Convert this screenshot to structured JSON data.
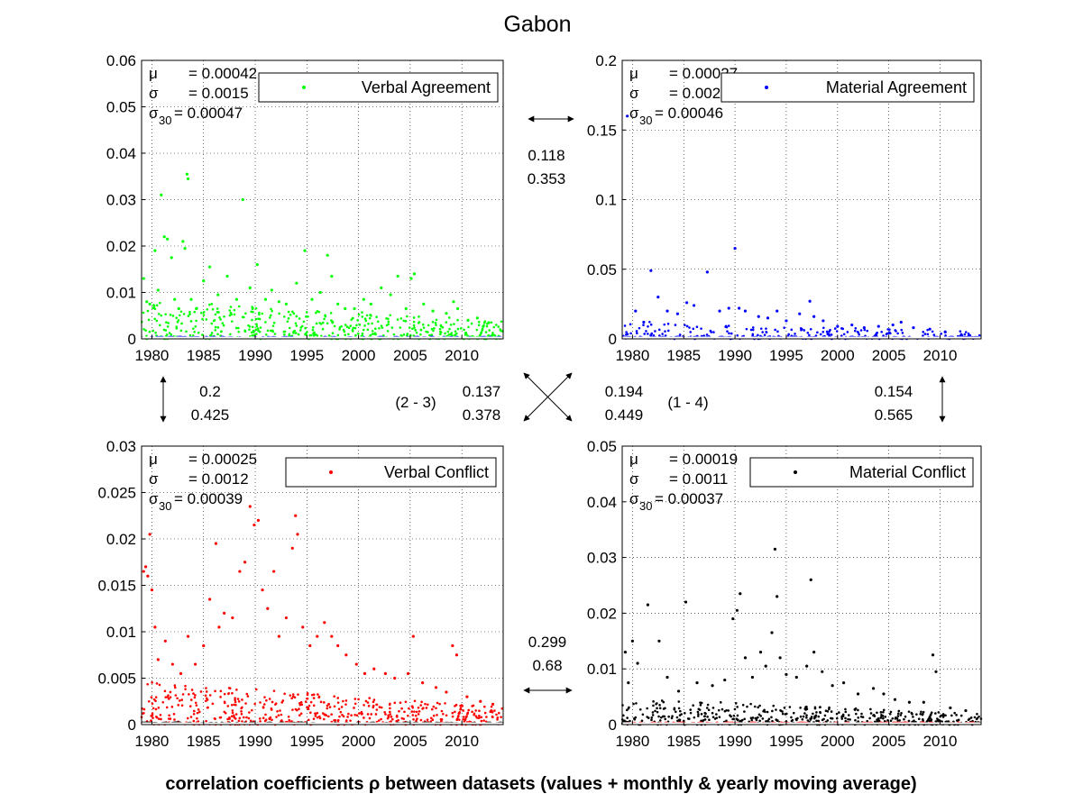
{
  "title": "Gabon",
  "footer": "correlation coefficients ρ between datasets (values + monthly & yearly moving average)",
  "x_ticks": [
    "1980",
    "1985",
    "1990",
    "1995",
    "2000",
    "2005",
    "2010"
  ],
  "chart_data": [
    {
      "type": "scatter",
      "legend": "Verbal Agreement",
      "color": "#00ff00",
      "stats": {
        "mu": "= 0.00042",
        "sigma": "= 0.0015",
        "sigma30": "= 0.00047"
      },
      "xlim": [
        1979,
        2014
      ],
      "ylim": [
        0,
        0.06
      ],
      "yticks": [
        0,
        0.01,
        0.02,
        0.03,
        0.04,
        0.05,
        0.06
      ],
      "ytick_labels": [
        "0",
        "0.01",
        "0.02",
        "0.03",
        "0.04",
        "0.05",
        "0.06"
      ],
      "points": [
        [
          1979.2,
          0.013
        ],
        [
          1979.5,
          0.008
        ],
        [
          1979.8,
          0.0075
        ],
        [
          1980.3,
          0.019
        ],
        [
          1980.6,
          0.0105
        ],
        [
          1980.9,
          0.031
        ],
        [
          1981.2,
          0.022
        ],
        [
          1981.5,
          0.0215
        ],
        [
          1981.9,
          0.0175
        ],
        [
          1982.2,
          0.0085
        ],
        [
          1982.6,
          0.0065
        ],
        [
          1983.0,
          0.021
        ],
        [
          1983.2,
          0.0195
        ],
        [
          1983.4,
          0.0355
        ],
        [
          1983.5,
          0.0345
        ],
        [
          1983.8,
          0.0085
        ],
        [
          1984.3,
          0.0065
        ],
        [
          1985.0,
          0.0125
        ],
        [
          1985.6,
          0.0155
        ],
        [
          1986.4,
          0.0095
        ],
        [
          1987.3,
          0.0135
        ],
        [
          1988.2,
          0.0085
        ],
        [
          1988.8,
          0.03
        ],
        [
          1989.5,
          0.011
        ],
        [
          1990.2,
          0.016
        ],
        [
          1991.0,
          0.0085
        ],
        [
          1991.6,
          0.0105
        ],
        [
          1992.3,
          0.008
        ],
        [
          1993.0,
          0.0075
        ],
        [
          1994.0,
          0.012
        ],
        [
          1994.8,
          0.019
        ],
        [
          1995.5,
          0.0085
        ],
        [
          1996.3,
          0.01
        ],
        [
          1997.0,
          0.018
        ],
        [
          1997.4,
          0.0135
        ],
        [
          1998.0,
          0.0075
        ],
        [
          1998.7,
          0.0065
        ],
        [
          1999.6,
          0.0065
        ],
        [
          2000.5,
          0.0085
        ],
        [
          2001.2,
          0.0075
        ],
        [
          2002.2,
          0.011
        ],
        [
          2003.1,
          0.0095
        ],
        [
          2003.8,
          0.0135
        ],
        [
          2004.6,
          0.0065
        ],
        [
          2005.1,
          0.013
        ],
        [
          2005.4,
          0.014
        ],
        [
          2006.3,
          0.0075
        ],
        [
          2007.2,
          0.006
        ],
        [
          2008.5,
          0.0055
        ],
        [
          2009.2,
          0.008
        ],
        [
          2009.6,
          0.0065
        ],
        [
          2010.6,
          0.004
        ],
        [
          2011.5,
          0.0045
        ],
        [
          2012.6,
          0.0035
        ]
      ],
      "dense": {
        "from": 1979,
        "to": 2014,
        "count": 520,
        "high": 0.007,
        "low": 0.0015,
        "seed": 11
      }
    },
    {
      "type": "scatter",
      "legend": "Material Agreement",
      "color": "#0000ff",
      "stats": {
        "mu": "= 0.00027",
        "sigma": "= 0.002",
        "sigma30": "= 0.00046"
      },
      "xlim": [
        1979,
        2014
      ],
      "ylim": [
        0,
        0.2
      ],
      "yticks": [
        0,
        0.05,
        0.1,
        0.15,
        0.2
      ],
      "ytick_labels": [
        "0",
        "0.05",
        "0.1",
        "0.15",
        "0.2"
      ],
      "points": [
        [
          1979.5,
          0.16
        ],
        [
          1980.3,
          0.02
        ],
        [
          1981.1,
          0.012
        ],
        [
          1981.8,
          0.049
        ],
        [
          1982.5,
          0.03
        ],
        [
          1983.4,
          0.02
        ],
        [
          1984.4,
          0.018
        ],
        [
          1985.3,
          0.026
        ],
        [
          1986.0,
          0.024
        ],
        [
          1987.3,
          0.048
        ],
        [
          1988.5,
          0.02
        ],
        [
          1989.4,
          0.022
        ],
        [
          1990.0,
          0.065
        ],
        [
          1990.4,
          0.022
        ],
        [
          1991.0,
          0.02
        ],
        [
          1992.3,
          0.016
        ],
        [
          1993.2,
          0.015
        ],
        [
          1994.1,
          0.02
        ],
        [
          1995.0,
          0.013
        ],
        [
          1996.3,
          0.018
        ],
        [
          1997.3,
          0.027
        ],
        [
          1997.7,
          0.016
        ],
        [
          1998.6,
          0.013
        ],
        [
          2000.0,
          0.009
        ],
        [
          2001.4,
          0.01
        ],
        [
          2002.6,
          0.008
        ],
        [
          2004.0,
          0.009
        ],
        [
          2005.4,
          0.01
        ],
        [
          2006.2,
          0.012
        ],
        [
          2007.4,
          0.008
        ],
        [
          2009.0,
          0.007
        ],
        [
          2010.5,
          0.005
        ]
      ],
      "dense": {
        "from": 1979,
        "to": 2014,
        "count": 260,
        "high": 0.012,
        "low": 0.001,
        "seed": 23
      }
    },
    {
      "type": "scatter",
      "legend": "Verbal Conflict",
      "color": "#ff0000",
      "stats": {
        "mu": "= 0.00025",
        "sigma": "= 0.0012",
        "sigma30": "= 0.00039"
      },
      "xlim": [
        1979,
        2014
      ],
      "ylim": [
        0,
        0.03
      ],
      "yticks": [
        0,
        0.005,
        0.01,
        0.015,
        0.02,
        0.025,
        0.03
      ],
      "ytick_labels": [
        "0",
        "0.005",
        "0.01",
        "0.015",
        "0.02",
        "0.025",
        "0.03"
      ],
      "points": [
        [
          1979.2,
          0.0165
        ],
        [
          1979.4,
          0.017
        ],
        [
          1979.6,
          0.016
        ],
        [
          1979.8,
          0.0205
        ],
        [
          1980.0,
          0.0145
        ],
        [
          1980.3,
          0.0105
        ],
        [
          1980.6,
          0.007
        ],
        [
          1981.3,
          0.009
        ],
        [
          1982.0,
          0.0065
        ],
        [
          1982.8,
          0.0055
        ],
        [
          1983.5,
          0.0095
        ],
        [
          1984.2,
          0.0065
        ],
        [
          1985.0,
          0.0085
        ],
        [
          1985.6,
          0.0135
        ],
        [
          1986.2,
          0.0195
        ],
        [
          1986.5,
          0.0105
        ],
        [
          1987.0,
          0.012
        ],
        [
          1987.8,
          0.0115
        ],
        [
          1988.5,
          0.0165
        ],
        [
          1989.0,
          0.0175
        ],
        [
          1989.5,
          0.0235
        ],
        [
          1989.9,
          0.0215
        ],
        [
          1990.3,
          0.022
        ],
        [
          1990.7,
          0.0145
        ],
        [
          1991.2,
          0.0125
        ],
        [
          1991.8,
          0.0165
        ],
        [
          1992.3,
          0.0095
        ],
        [
          1993.0,
          0.0115
        ],
        [
          1993.6,
          0.019
        ],
        [
          1993.9,
          0.0225
        ],
        [
          1994.1,
          0.0205
        ],
        [
          1994.6,
          0.0105
        ],
        [
          1995.3,
          0.0085
        ],
        [
          1996.0,
          0.0095
        ],
        [
          1996.7,
          0.011
        ],
        [
          1997.4,
          0.0095
        ],
        [
          1998.0,
          0.0085
        ],
        [
          1998.8,
          0.0075
        ],
        [
          1999.8,
          0.0065
        ],
        [
          2000.6,
          0.0055
        ],
        [
          2001.5,
          0.006
        ],
        [
          2002.6,
          0.0055
        ],
        [
          2003.5,
          0.005
        ],
        [
          2004.8,
          0.0055
        ],
        [
          2005.3,
          0.0095
        ],
        [
          2006.2,
          0.0045
        ],
        [
          2007.5,
          0.004
        ],
        [
          2008.5,
          0.0035
        ],
        [
          2009.1,
          0.0085
        ],
        [
          2009.5,
          0.0075
        ],
        [
          2010.5,
          0.003
        ],
        [
          2011.8,
          0.0025
        ],
        [
          2013.0,
          0.0022
        ]
      ],
      "dense": {
        "from": 1979,
        "to": 2014,
        "count": 560,
        "high": 0.0045,
        "low": 0.0003,
        "seed": 37
      }
    },
    {
      "type": "scatter",
      "legend": "Material Conflict",
      "color": "#000000",
      "stats": {
        "mu": "= 0.00019",
        "sigma": "= 0.0011",
        "sigma30": "= 0.00037"
      },
      "xlim": [
        1979,
        2014
      ],
      "ylim": [
        0,
        0.05
      ],
      "yticks": [
        0,
        0.01,
        0.02,
        0.03,
        0.04,
        0.05
      ],
      "ytick_labels": [
        "0",
        "0.01",
        "0.02",
        "0.03",
        "0.04",
        "0.05"
      ],
      "points": [
        [
          1979.3,
          0.013
        ],
        [
          1979.6,
          0.0075
        ],
        [
          1980.0,
          0.015
        ],
        [
          1980.5,
          0.011
        ],
        [
          1981.5,
          0.0215
        ],
        [
          1982.6,
          0.015
        ],
        [
          1983.4,
          0.0085
        ],
        [
          1984.5,
          0.006
        ],
        [
          1985.2,
          0.022
        ],
        [
          1986.3,
          0.0075
        ],
        [
          1987.8,
          0.007
        ],
        [
          1989.0,
          0.008
        ],
        [
          1989.8,
          0.019
        ],
        [
          1990.2,
          0.0205
        ],
        [
          1990.5,
          0.0235
        ],
        [
          1991.0,
          0.012
        ],
        [
          1991.7,
          0.0085
        ],
        [
          1992.5,
          0.013
        ],
        [
          1993.0,
          0.0105
        ],
        [
          1993.6,
          0.0165
        ],
        [
          1993.9,
          0.0315
        ],
        [
          1994.1,
          0.023
        ],
        [
          1994.4,
          0.012
        ],
        [
          1995.0,
          0.009
        ],
        [
          1996.0,
          0.0085
        ],
        [
          1997.0,
          0.0105
        ],
        [
          1997.4,
          0.026
        ],
        [
          1997.7,
          0.013
        ],
        [
          1998.5,
          0.0095
        ],
        [
          1999.5,
          0.007
        ],
        [
          2000.6,
          0.0075
        ],
        [
          2002.0,
          0.0055
        ],
        [
          2003.5,
          0.0065
        ],
        [
          2004.5,
          0.0055
        ],
        [
          2005.6,
          0.0045
        ],
        [
          2007.0,
          0.004
        ],
        [
          2008.4,
          0.004
        ],
        [
          2009.3,
          0.0125
        ],
        [
          2009.6,
          0.0095
        ],
        [
          2011.0,
          0.003
        ],
        [
          2012.5,
          0.0025
        ]
      ],
      "dense": {
        "from": 1979,
        "to": 2014,
        "count": 520,
        "high": 0.0045,
        "low": 0.0003,
        "seed": 53
      }
    }
  ],
  "correlations": {
    "top": {
      "a": "0.118",
      "b": "0.353"
    },
    "left": {
      "a": "0.2",
      "b": "0.425"
    },
    "right": {
      "a": "0.154",
      "b": "0.565"
    },
    "bottom": {
      "a": "0.299",
      "b": "0.68"
    },
    "diag_left": {
      "pair": "(2 - 3)",
      "a": "0.137",
      "b": "0.378"
    },
    "diag_right": {
      "pair": "(1 - 4)",
      "a": "0.194",
      "b": "0.449"
    }
  }
}
